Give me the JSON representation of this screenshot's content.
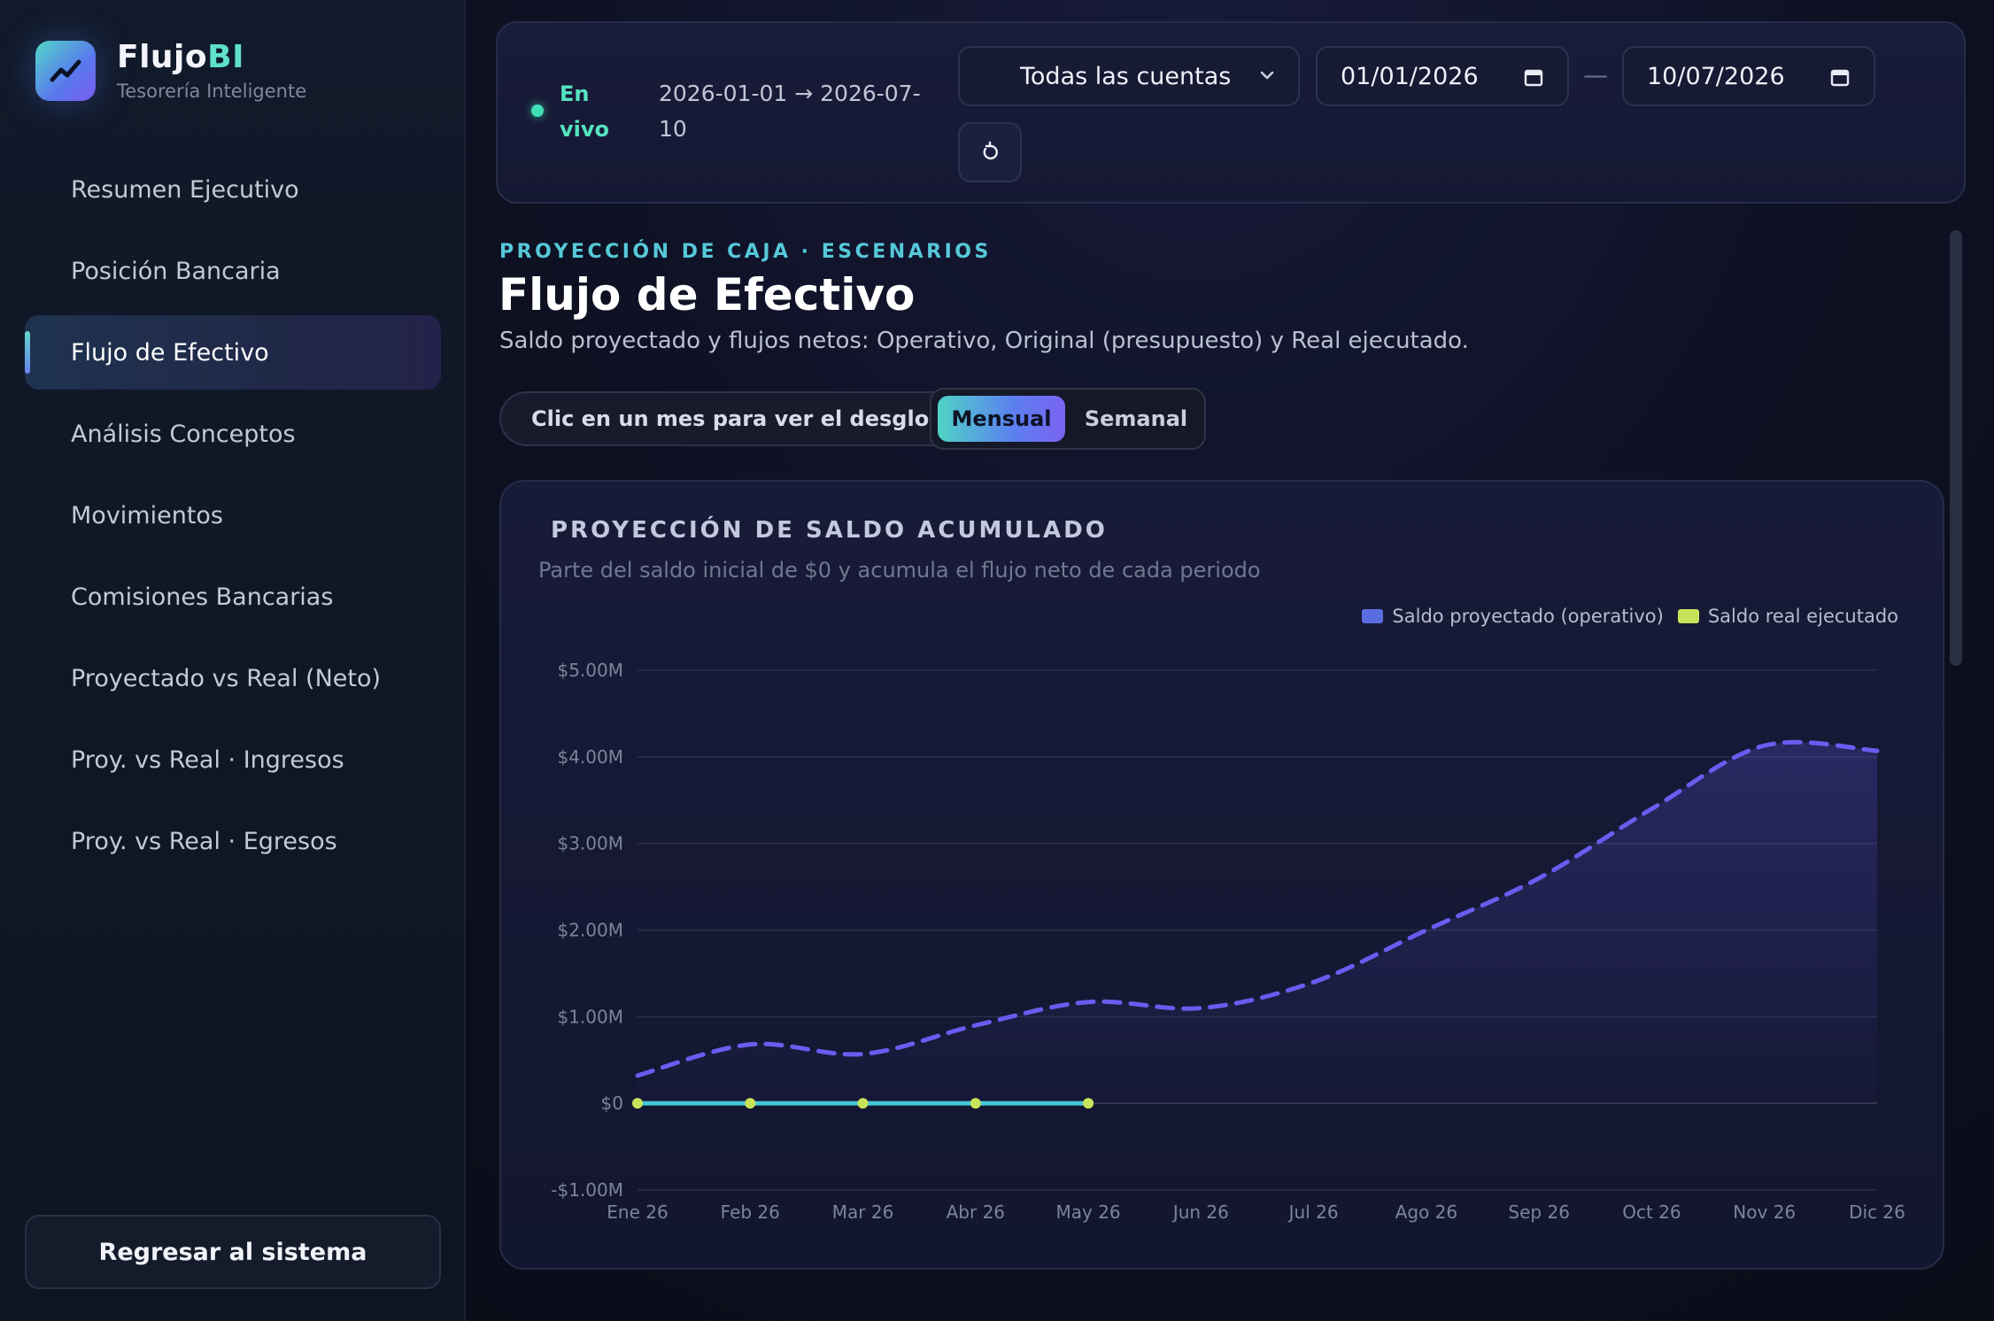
{
  "brand": {
    "name_main": "Flujo",
    "name_accent": "BI",
    "subtitle": "Tesorería Inteligente",
    "logo_icon": "trend-up-icon"
  },
  "sidebar": {
    "items": [
      {
        "label": "Resumen Ejecutivo",
        "active": false
      },
      {
        "label": "Posición Bancaria",
        "active": false
      },
      {
        "label": "Flujo de Efectivo",
        "active": true
      },
      {
        "label": "Análisis Conceptos",
        "active": false
      },
      {
        "label": "Movimientos",
        "active": false
      },
      {
        "label": "Comisiones Bancarias",
        "active": false
      },
      {
        "label": "Proyectado vs Real (Neto)",
        "active": false
      },
      {
        "label": "Proy. vs Real · Ingresos",
        "active": false
      },
      {
        "label": "Proy. vs Real · Egresos",
        "active": false
      }
    ],
    "back_button": "Regresar al sistema"
  },
  "filters": {
    "live_label": "En vivo",
    "range_text": "2026-01-01 → 2026-07-10",
    "account_select": "Todas las cuentas",
    "date_from": "01/01/2026",
    "date_separator": "—",
    "date_to": "10/07/2026",
    "reset_icon": "refresh-icon"
  },
  "header": {
    "eyebrow": "PROYECCIÓN DE CAJA · ESCENARIOS",
    "title": "Flujo de Efectivo",
    "subtitle": "Saldo proyectado y flujos netos: Operativo, Original (presupuesto) y Real ejecutado."
  },
  "controls": {
    "hint": "Clic en un mes para ver el desglose",
    "toggle": {
      "active": "Mensual",
      "inactive": "Semanal"
    }
  },
  "colors": {
    "projected": "#6a5cf0",
    "real_line": "#45c9d6",
    "real_points": "#c8e35a",
    "legend_projected": "#5a6de0",
    "legend_real": "#c8e35a"
  },
  "chart_data": {
    "type": "line",
    "title": "PROYECCIÓN DE SALDO ACUMULADO",
    "subtitle": "Parte del saldo inicial de $0 y acumula el flujo neto de cada periodo",
    "x": [
      "Ene 26",
      "Feb 26",
      "Mar 26",
      "Abr 26",
      "May 26",
      "Jun 26",
      "Jul 26",
      "Ago 26",
      "Sep 26",
      "Oct 26",
      "Nov 26",
      "Dic 26"
    ],
    "ylim": [
      -1000000,
      5000000
    ],
    "yticks": [
      -1000000,
      0,
      1000000,
      2000000,
      3000000,
      4000000,
      5000000
    ],
    "ytick_labels": [
      "-$1.00M",
      "$0",
      "$1.00M",
      "$2.00M",
      "$3.00M",
      "$4.00M",
      "$5.00M"
    ],
    "grid": true,
    "legend_position": "top-right",
    "series": [
      {
        "name": "Saldo proyectado (operativo)",
        "style": "dashed-area",
        "values": [
          320000,
          680000,
          570000,
          900000,
          1170000,
          1100000,
          1400000,
          2000000,
          2600000,
          3400000,
          4130000,
          4070000
        ]
      },
      {
        "name": "Saldo real ejecutado",
        "style": "solid-points",
        "values": [
          0,
          0,
          0,
          0,
          0,
          null,
          null,
          null,
          null,
          null,
          null,
          null
        ]
      }
    ]
  }
}
